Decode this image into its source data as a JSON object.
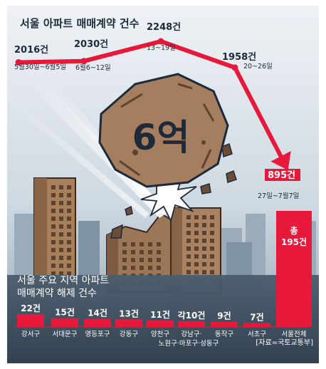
{
  "chart_data": [
    {
      "type": "line",
      "title": "서울 아파트 매매계약 건수",
      "points": [
        {
          "label": "5월30일~6월5일",
          "value": 2016,
          "value_text": "2016건"
        },
        {
          "label": "6월6~12일",
          "value": 2030,
          "value_text": "2030건"
        },
        {
          "label": "13~19일",
          "value": 2248,
          "value_text": "2248건"
        },
        {
          "label": "20~26일",
          "value": 1958,
          "value_text": "1958건"
        },
        {
          "label": "27일~7월7일",
          "value": 895,
          "value_text": "895건"
        }
      ]
    },
    {
      "type": "bar",
      "title_line1": "서울 주요 지역 아파트",
      "title_line2": "매매계약 해제 건수",
      "bars": [
        {
          "category": "강서구",
          "value": 22,
          "value_text": "22건"
        },
        {
          "category": "서대문구",
          "value": 15,
          "value_text": "15건"
        },
        {
          "category": "영등포구",
          "value": 14,
          "value_text": "14건"
        },
        {
          "category": "강동구",
          "value": 13,
          "value_text": "13건"
        },
        {
          "category": "양천구",
          "value": 11,
          "value_text": "11건"
        },
        {
          "category": "강남구·",
          "category_line2": "노원구·마포구·성동구",
          "value": 10,
          "value_text": "각10건"
        },
        {
          "category": "동작구",
          "value": 9,
          "value_text": "9건"
        },
        {
          "category": "서초구",
          "value": 7,
          "value_text": "7건"
        }
      ],
      "total": {
        "category": "서울전체",
        "label": "총",
        "value": 195,
        "value_text": "195건"
      },
      "source": "[자료=국토교통부]"
    }
  ],
  "illustration": {
    "rock_text": "6억"
  },
  "colors": {
    "accent_red": "#e8183a",
    "dark_navy": "#1e2a3a",
    "sky": "#dfe6ec",
    "city_dark": "#3b4c5c"
  }
}
